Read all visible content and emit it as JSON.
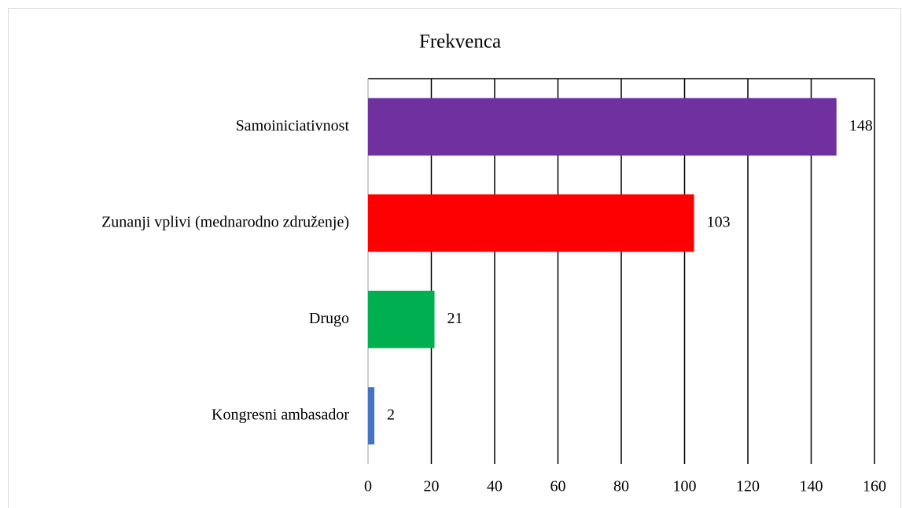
{
  "chart_data": {
    "type": "bar",
    "orientation": "horizontal",
    "title": "Frekvenca",
    "categories": [
      "Samoiniciativnost",
      "Zunanji vplivi (mednarodno združenje)",
      "Drugo",
      "Kongresni ambasador"
    ],
    "values": [
      148,
      103,
      21,
      2
    ],
    "colors": [
      "#7030a0",
      "#ff0000",
      "#00b050",
      "#4472c4"
    ],
    "xlim": [
      0,
      160
    ],
    "xticks": [
      0,
      20,
      40,
      60,
      80,
      100,
      120,
      140,
      160
    ],
    "grid": true
  }
}
